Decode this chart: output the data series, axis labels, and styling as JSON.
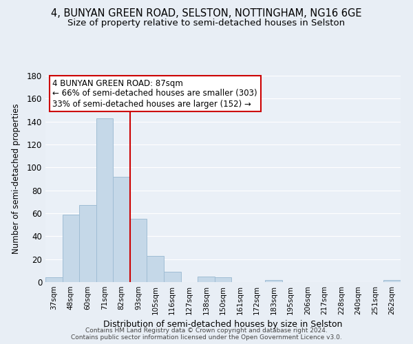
{
  "title": "4, BUNYAN GREEN ROAD, SELSTON, NOTTINGHAM, NG16 6GE",
  "subtitle": "Size of property relative to semi-detached houses in Selston",
  "xlabel": "Distribution of semi-detached houses by size in Selston",
  "ylabel": "Number of semi-detached properties",
  "footer_line1": "Contains HM Land Registry data © Crown copyright and database right 2024.",
  "footer_line2": "Contains public sector information licensed under the Open Government Licence v3.0.",
  "categories": [
    "37sqm",
    "48sqm",
    "60sqm",
    "71sqm",
    "82sqm",
    "93sqm",
    "105sqm",
    "116sqm",
    "127sqm",
    "138sqm",
    "150sqm",
    "161sqm",
    "172sqm",
    "183sqm",
    "195sqm",
    "206sqm",
    "217sqm",
    "228sqm",
    "240sqm",
    "251sqm",
    "262sqm"
  ],
  "values": [
    4,
    59,
    67,
    143,
    92,
    55,
    23,
    9,
    0,
    5,
    4,
    0,
    0,
    2,
    0,
    0,
    0,
    0,
    0,
    0,
    2
  ],
  "bar_color": "#c5d8e8",
  "bar_edge_color": "#a0bdd4",
  "vline_x_idx": 4,
  "vline_color": "#cc0000",
  "annotation_line1": "4 BUNYAN GREEN ROAD: 87sqm",
  "annotation_line2": "← 66% of semi-detached houses are smaller (303)",
  "annotation_line3": "33% of semi-detached houses are larger (152) →",
  "annotation_box_color": "#ffffff",
  "annotation_box_edge_color": "#cc0000",
  "ylim": [
    0,
    180
  ],
  "yticks": [
    0,
    20,
    40,
    60,
    80,
    100,
    120,
    140,
    160,
    180
  ],
  "bg_color": "#e8eef5",
  "plot_bg_color": "#eaf0f7",
  "title_fontsize": 10.5,
  "subtitle_fontsize": 9.5,
  "xlabel_fontsize": 9,
  "ylabel_fontsize": 8.5,
  "xtick_fontsize": 7.5,
  "ytick_fontsize": 8.5,
  "annotation_fontsize": 8.5,
  "footer_fontsize": 6.5
}
